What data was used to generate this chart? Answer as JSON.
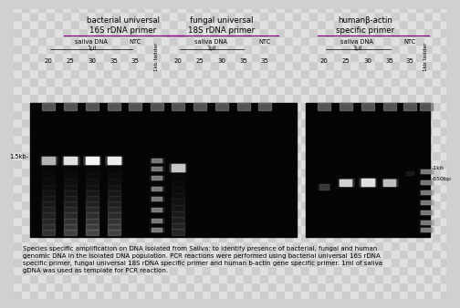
{
  "figure_bg": "#d0d0d0",
  "gel_bg": "#050505",
  "caption": "Species specific amplification on DNA isolated from Saliva: to identify presence of bacterial, fungal and human\ngenomic DNA in the isolated DNA population. PCR reactions were performed using bacterial universal 16S rDNA\nspecific primer, fungal universal 18S rDNA specific primer and human b-actin gene specific primer. 1ml of saliva\ngDNA was used as template for PCR reaction.",
  "caption_fontsize": 5.0,
  "title1": "bacterial universal\n16S rDNA primer",
  "title2": "fungal universal\n18S rDNA primer",
  "title3": "humanβ-actin\nspecific primer",
  "underline_color": "#800080",
  "marker_1_5kb": "1.5kb-",
  "marker_1kb": "-1kb",
  "marker_650bp": "-650bp"
}
